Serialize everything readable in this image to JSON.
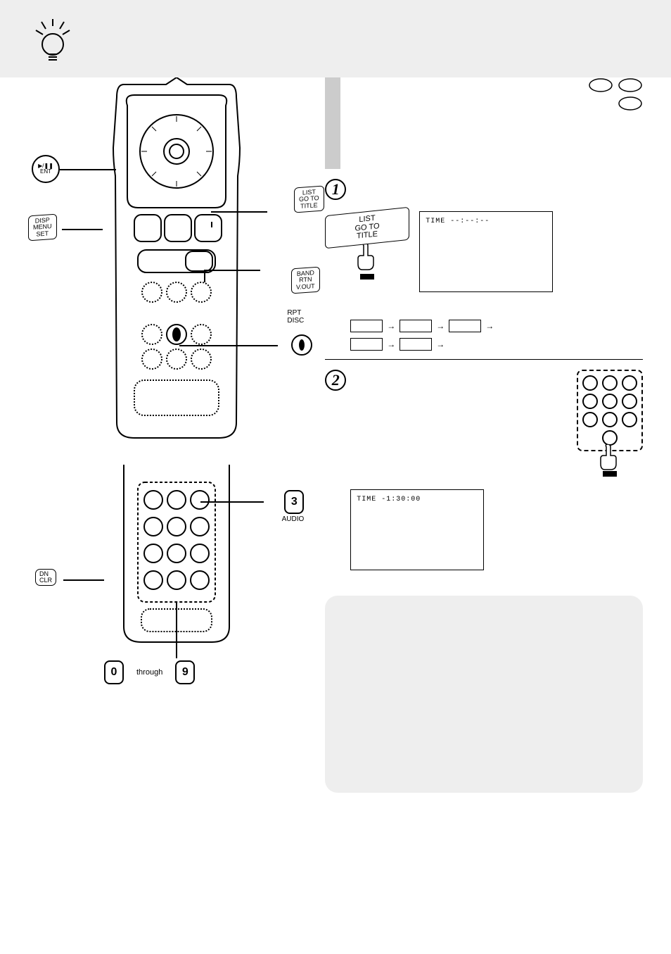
{
  "labels": {
    "ent": "▶/❚❚\nENT",
    "disp_menu_set": "DISP\nMENU\nSET",
    "list_goto_title": "LIST\nGO TO\nTITLE",
    "band_rtn_vout": "BAND\nRTN\nV.OUT",
    "rpt_disc": "RPT\nDISC",
    "dn_clr": "DN\nCLR",
    "audio": "AUDIO",
    "num3": "3",
    "num0": "0",
    "num9": "9",
    "through": "through"
  },
  "screens": {
    "s1": "TIME --:--:--",
    "s2": "TIME -1:30:00"
  },
  "discs": [
    "",
    "",
    ""
  ],
  "colors": {
    "panel_bg": "#eeeeee",
    "line": "#000000",
    "dash": "#000000"
  }
}
